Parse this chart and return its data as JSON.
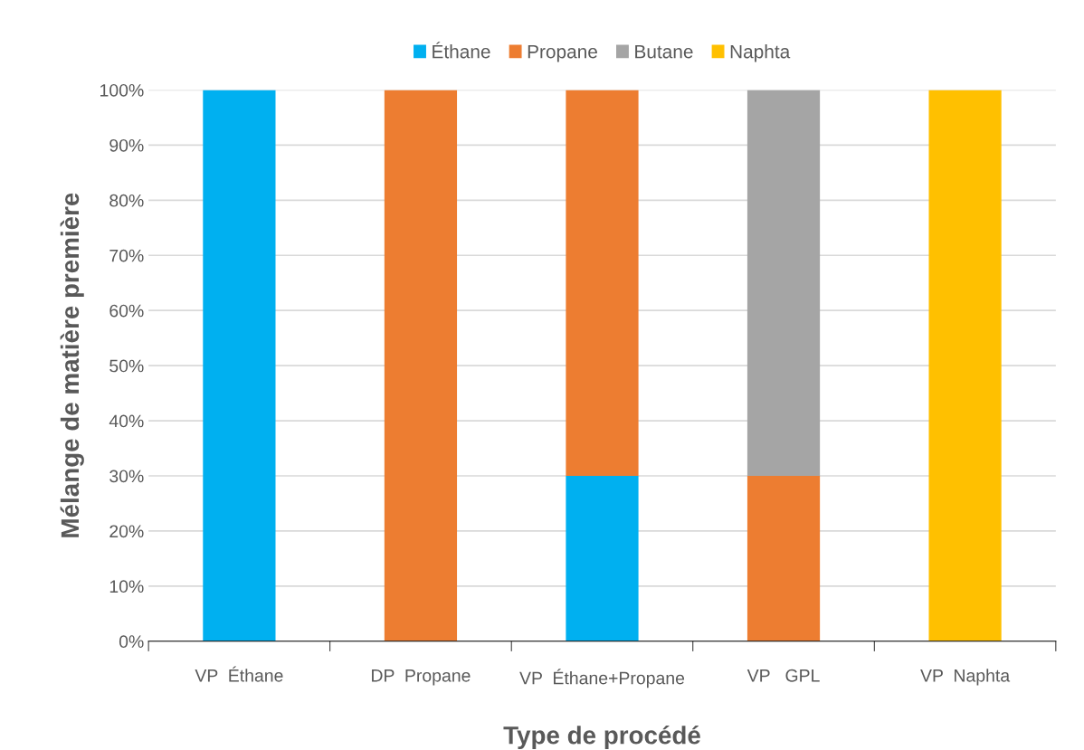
{
  "chart_data": {
    "type": "bar",
    "stacked": true,
    "xlabel": "Type de procédé",
    "ylabel": "Mélange de matière première",
    "categories": [
      "VP  Éthane",
      "DP  Propane",
      "VP  Éthane+Propane",
      "VP   GPL",
      "VP  Naphta"
    ],
    "series": [
      {
        "name": "Éthane",
        "color": "#00b0f0",
        "values": [
          100,
          0,
          30,
          0,
          0
        ]
      },
      {
        "name": "Propane",
        "color": "#ed7d31",
        "values": [
          0,
          100,
          70,
          30,
          0
        ]
      },
      {
        "name": "Butane",
        "color": "#a5a5a5",
        "values": [
          0,
          0,
          0,
          70,
          0
        ]
      },
      {
        "name": "Naphta",
        "color": "#ffc000",
        "values": [
          0,
          0,
          0,
          0,
          100
        ]
      }
    ],
    "ylim": [
      0,
      100
    ],
    "yticks": [
      {
        "value": 0,
        "label": "0%"
      },
      {
        "value": 10,
        "label": "10%"
      },
      {
        "value": 20,
        "label": "20%"
      },
      {
        "value": 30,
        "label": "30%"
      },
      {
        "value": 40,
        "label": "40%"
      },
      {
        "value": 50,
        "label": "50%"
      },
      {
        "value": 60,
        "label": "60%"
      },
      {
        "value": 70,
        "label": "70%"
      },
      {
        "value": 80,
        "label": "80%"
      },
      {
        "value": 90,
        "label": "90%"
      },
      {
        "value": 100,
        "label": "100%"
      }
    ],
    "grid": "y",
    "legend": "top"
  }
}
